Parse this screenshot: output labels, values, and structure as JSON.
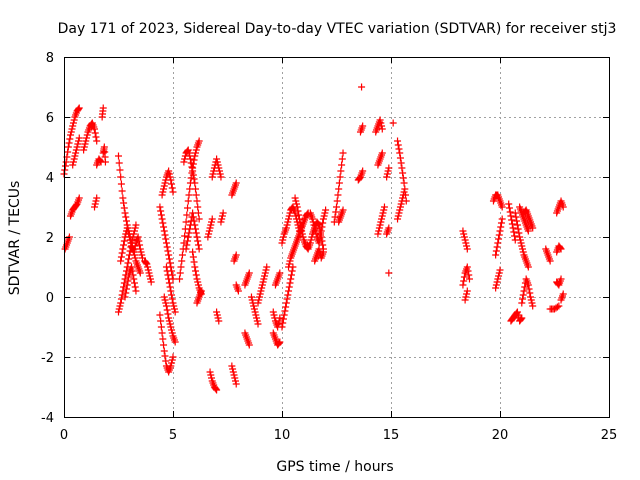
{
  "chart_data": {
    "type": "scatter",
    "title": "Day 171 of 2023, Sidereal Day-to-day VTEC variation (SDTVAR) for receiver stj3",
    "xlabel": "GPS time / hours",
    "ylabel": "SDTVAR / TECUs",
    "xlim": [
      0,
      25
    ],
    "ylim": [
      -4,
      8
    ],
    "xticks": [
      0,
      5,
      10,
      15,
      20,
      25
    ],
    "yticks": [
      -4,
      -2,
      0,
      2,
      4,
      6,
      8
    ],
    "xtick_labels": [
      "0",
      "5",
      "10",
      "15",
      "20",
      "25"
    ],
    "ytick_labels": [
      "-4",
      "-2",
      "0",
      "2",
      "4",
      "6",
      "8"
    ],
    "grid": true,
    "marker": "+",
    "color": "#ff0000",
    "tracks": [
      {
        "x": [
          0.0,
          0.1,
          0.2,
          0.3,
          0.4,
          0.5,
          0.6,
          0.7
        ],
        "y": [
          4.1,
          4.5,
          5.0,
          5.4,
          5.7,
          6.0,
          6.2,
          6.3
        ]
      },
      {
        "x": [
          0.05,
          0.15,
          0.25
        ],
        "y": [
          1.6,
          1.8,
          2.0
        ]
      },
      {
        "x": [
          0.3,
          0.4,
          0.5,
          0.6,
          0.7
        ],
        "y": [
          2.7,
          2.9,
          3.0,
          3.1,
          3.3
        ]
      },
      {
        "x": [
          0.4,
          0.5,
          0.6,
          0.7
        ],
        "y": [
          4.4,
          4.7,
          5.0,
          5.3
        ]
      },
      {
        "x": [
          0.9,
          1.0,
          1.1,
          1.2,
          1.3,
          1.4,
          1.5
        ],
        "y": [
          4.9,
          5.2,
          5.5,
          5.7,
          5.8,
          5.6,
          5.2
        ]
      },
      {
        "x": [
          1.4,
          1.5
        ],
        "y": [
          3.0,
          3.3
        ]
      },
      {
        "x": [
          1.5,
          1.6,
          1.7
        ],
        "y": [
          4.4,
          4.6,
          4.5
        ]
      },
      {
        "x": [
          1.75,
          1.8
        ],
        "y": [
          6.0,
          6.3
        ]
      },
      {
        "x": [
          1.8,
          1.85,
          1.9
        ],
        "y": [
          4.8,
          5.0,
          4.5
        ]
      },
      {
        "x": [
          2.5,
          2.6,
          2.7,
          2.8,
          2.9,
          3.0,
          3.1,
          3.2,
          3.3,
          3.4,
          3.5
        ],
        "y": [
          4.7,
          4.0,
          3.3,
          2.8,
          2.4,
          2.1,
          1.8,
          1.5,
          1.2,
          1.0,
          0.8
        ]
      },
      {
        "x": [
          2.5,
          2.6,
          2.7,
          2.8,
          2.9,
          3.0,
          3.1,
          3.2,
          3.3
        ],
        "y": [
          -0.5,
          -0.2,
          0.2,
          0.6,
          1.0,
          1.4,
          1.8,
          2.1,
          2.4
        ]
      },
      {
        "x": [
          2.6,
          2.7,
          2.8,
          2.9,
          3.0,
          3.1,
          3.2,
          3.3,
          3.4,
          3.5,
          3.6
        ],
        "y": [
          1.2,
          1.6,
          2.0,
          2.3,
          2.0,
          1.7,
          1.5,
          1.8,
          2.0,
          1.6,
          1.3
        ]
      },
      {
        "x": [
          2.8,
          2.9,
          3.0,
          3.1,
          3.2,
          3.3
        ],
        "y": [
          0.0,
          0.4,
          0.8,
          1.0,
          0.6,
          0.2
        ]
      },
      {
        "x": [
          3.7,
          3.8,
          3.9,
          4.0
        ],
        "y": [
          1.2,
          1.1,
          0.8,
          0.5
        ]
      },
      {
        "x": [
          4.4,
          4.5,
          4.6,
          4.7,
          4.8,
          4.9,
          5.0
        ],
        "y": [
          3.0,
          2.6,
          2.2,
          1.8,
          1.4,
          1.0,
          0.6
        ]
      },
      {
        "x": [
          4.4,
          4.5,
          4.6,
          4.7,
          4.8,
          4.9,
          5.0
        ],
        "y": [
          -0.6,
          -1.2,
          -1.8,
          -2.3,
          -2.5,
          -2.3,
          -2.0
        ]
      },
      {
        "x": [
          4.5,
          4.6,
          4.7,
          4.8,
          4.9,
          5.0
        ],
        "y": [
          3.4,
          3.7,
          4.0,
          4.2,
          3.9,
          3.5
        ]
      },
      {
        "x": [
          4.6,
          4.7,
          4.8,
          4.9,
          5.0,
          5.1
        ],
        "y": [
          0.0,
          -0.3,
          -0.7,
          -1.0,
          -1.3,
          -1.5
        ]
      },
      {
        "x": [
          4.7,
          4.8,
          4.9,
          5.0,
          5.1
        ],
        "y": [
          1.0,
          0.6,
          0.2,
          -0.2,
          -0.5
        ]
      },
      {
        "x": [
          5.3,
          5.4,
          5.5,
          5.6,
          5.7,
          5.8,
          5.9,
          6.0,
          6.1,
          6.2
        ],
        "y": [
          0.6,
          1.2,
          1.8,
          2.5,
          3.2,
          3.8,
          4.3,
          4.7,
          5.0,
          5.2
        ]
      },
      {
        "x": [
          5.5,
          5.6,
          5.7,
          5.8,
          5.9,
          6.0,
          6.1,
          6.2
        ],
        "y": [
          4.5,
          4.8,
          4.9,
          4.6,
          4.2,
          3.8,
          3.2,
          2.6
        ]
      },
      {
        "x": [
          5.6,
          5.7,
          5.8,
          5.9,
          6.0,
          6.1,
          6.2
        ],
        "y": [
          1.6,
          2.0,
          2.4,
          2.8,
          2.4,
          2.0,
          1.6
        ]
      },
      {
        "x": [
          5.9,
          6.0,
          6.1,
          6.2,
          6.3
        ],
        "y": [
          1.5,
          1.0,
          0.6,
          0.3,
          0.1
        ]
      },
      {
        "x": [
          6.1,
          6.2,
          6.3
        ],
        "y": [
          -0.2,
          0.0,
          0.2
        ]
      },
      {
        "x": [
          6.6,
          6.7,
          6.8
        ],
        "y": [
          2.0,
          2.3,
          2.6
        ]
      },
      {
        "x": [
          6.7,
          6.8,
          6.9,
          7.0
        ],
        "y": [
          -2.5,
          -2.8,
          -3.0,
          -3.1
        ]
      },
      {
        "x": [
          6.8,
          6.9,
          7.0,
          7.1,
          7.2
        ],
        "y": [
          4.0,
          4.3,
          4.6,
          4.3,
          4.0
        ]
      },
      {
        "x": [
          7.0,
          7.1
        ],
        "y": [
          -0.5,
          -0.8
        ]
      },
      {
        "x": [
          7.2,
          7.3
        ],
        "y": [
          2.5,
          2.8
        ]
      },
      {
        "x": [
          7.7,
          7.8,
          7.9
        ],
        "y": [
          3.4,
          3.6,
          3.8
        ]
      },
      {
        "x": [
          7.7,
          7.8,
          7.9
        ],
        "y": [
          -2.3,
          -2.6,
          -2.9
        ]
      },
      {
        "x": [
          7.8,
          7.9
        ],
        "y": [
          1.2,
          1.4
        ]
      },
      {
        "x": [
          7.9,
          8.0
        ],
        "y": [
          0.4,
          0.2
        ]
      },
      {
        "x": [
          8.3,
          8.4,
          8.5
        ],
        "y": [
          -1.2,
          -1.4,
          -1.6
        ]
      },
      {
        "x": [
          8.3,
          8.4,
          8.5
        ],
        "y": [
          0.4,
          0.6,
          0.8
        ]
      },
      {
        "x": [
          8.6,
          8.7,
          8.8,
          8.9
        ],
        "y": [
          0.0,
          -0.3,
          -0.6,
          -0.9
        ]
      },
      {
        "x": [
          8.9,
          9.0,
          9.1,
          9.2,
          9.3
        ],
        "y": [
          -0.2,
          0.1,
          0.4,
          0.7,
          1.0
        ]
      },
      {
        "x": [
          9.6,
          9.7,
          9.8,
          9.9
        ],
        "y": [
          -1.2,
          -1.4,
          -1.6,
          -1.5
        ]
      },
      {
        "x": [
          9.6,
          9.7,
          9.8,
          9.9
        ],
        "y": [
          -0.5,
          -0.8,
          -1.0,
          -0.7
        ]
      },
      {
        "x": [
          9.7,
          9.8,
          9.9
        ],
        "y": [
          0.4,
          0.6,
          0.8
        ]
      },
      {
        "x": [
          10.0,
          10.1,
          10.2,
          10.3,
          10.4,
          10.5
        ],
        "y": [
          -1.0,
          -0.6,
          -0.2,
          0.2,
          0.6,
          1.0
        ]
      },
      {
        "x": [
          10.0,
          10.1,
          10.2,
          10.3,
          10.4,
          10.5,
          10.6,
          10.7,
          10.8
        ],
        "y": [
          1.8,
          2.1,
          2.3,
          2.6,
          2.9,
          3.0,
          2.8,
          2.5,
          2.2
        ]
      },
      {
        "x": [
          10.3,
          10.4,
          10.5,
          10.6,
          10.7,
          10.8,
          10.9,
          11.0,
          11.1,
          11.2
        ],
        "y": [
          1.0,
          1.3,
          1.5,
          1.7,
          1.9,
          2.1,
          2.3,
          2.5,
          2.7,
          2.8
        ]
      },
      {
        "x": [
          10.6,
          10.7,
          10.8,
          10.9,
          11.0,
          11.1,
          11.2,
          11.3,
          11.4,
          11.5,
          11.6,
          11.7,
          11.8,
          11.9
        ],
        "y": [
          3.3,
          3.0,
          2.6,
          2.2,
          1.9,
          1.7,
          1.6,
          1.8,
          2.1,
          2.3,
          2.5,
          2.4,
          2.0,
          1.6
        ]
      },
      {
        "x": [
          11.3,
          11.4,
          11.5,
          11.6,
          11.7,
          11.8,
          11.9,
          12.0
        ],
        "y": [
          2.8,
          2.6,
          2.3,
          2.0,
          1.8,
          2.2,
          2.6,
          2.9
        ]
      },
      {
        "x": [
          11.5,
          11.6,
          11.7,
          11.8,
          11.9
        ],
        "y": [
          1.2,
          1.4,
          1.6,
          1.3,
          1.5
        ]
      },
      {
        "x": [
          12.4,
          12.5,
          12.6,
          12.7,
          12.8
        ],
        "y": [
          2.5,
          3.0,
          3.6,
          4.2,
          4.8
        ]
      },
      {
        "x": [
          12.6,
          12.7,
          12.8
        ],
        "y": [
          2.5,
          2.7,
          2.9
        ]
      },
      {
        "x": [
          13.5,
          13.6,
          13.7
        ],
        "y": [
          3.9,
          4.0,
          4.2
        ]
      },
      {
        "x": [
          13.6,
          13.7
        ],
        "y": [
          5.5,
          5.7
        ]
      },
      {
        "x": [
          13.65
        ],
        "y": [
          7.0
        ]
      },
      {
        "x": [
          14.3,
          14.4,
          14.5,
          14.6
        ],
        "y": [
          5.5,
          5.7,
          5.9,
          5.6
        ]
      },
      {
        "x": [
          14.4,
          14.5,
          14.6
        ],
        "y": [
          4.4,
          4.6,
          4.8
        ]
      },
      {
        "x": [
          14.4,
          14.5,
          14.6,
          14.7
        ],
        "y": [
          2.1,
          2.4,
          2.7,
          3.0
        ]
      },
      {
        "x": [
          14.8,
          14.9
        ],
        "y": [
          4.0,
          4.3
        ]
      },
      {
        "x": [
          14.8,
          14.9
        ],
        "y": [
          2.1,
          2.3
        ]
      },
      {
        "x": [
          14.9
        ],
        "y": [
          0.8
        ]
      },
      {
        "x": [
          15.1
        ],
        "y": [
          5.8
        ]
      },
      {
        "x": [
          15.3,
          15.4,
          15.5,
          15.6,
          15.7
        ],
        "y": [
          5.2,
          4.8,
          4.3,
          3.8,
          3.2
        ]
      },
      {
        "x": [
          15.3,
          15.4,
          15.5,
          15.6
        ],
        "y": [
          2.6,
          2.9,
          3.2,
          3.5
        ]
      },
      {
        "x": [
          18.3,
          18.4,
          18.5
        ],
        "y": [
          2.2,
          1.9,
          1.6
        ]
      },
      {
        "x": [
          18.3,
          18.4,
          18.5,
          18.6
        ],
        "y": [
          0.4,
          0.8,
          1.0,
          0.6
        ]
      },
      {
        "x": [
          18.4,
          18.5
        ],
        "y": [
          -0.1,
          0.2
        ]
      },
      {
        "x": [
          19.7,
          19.8,
          19.9,
          20.0,
          20.1
        ],
        "y": [
          3.2,
          3.4,
          3.4,
          3.2,
          3.0
        ]
      },
      {
        "x": [
          19.8,
          19.9,
          20.0,
          20.1
        ],
        "y": [
          1.4,
          1.8,
          2.2,
          2.6
        ]
      },
      {
        "x": [
          19.8,
          19.9,
          20.0
        ],
        "y": [
          0.3,
          0.6,
          0.9
        ]
      },
      {
        "x": [
          20.4,
          20.5,
          20.6,
          20.7
        ],
        "y": [
          3.1,
          2.7,
          2.3,
          1.9
        ]
      },
      {
        "x": [
          20.5,
          20.6,
          20.7,
          20.8,
          20.9,
          21.0
        ],
        "y": [
          -0.8,
          -0.7,
          -0.6,
          -0.5,
          -0.8,
          -0.7
        ]
      },
      {
        "x": [
          20.7,
          20.8,
          20.9,
          21.0,
          21.1,
          21.2,
          21.3
        ],
        "y": [
          2.8,
          2.4,
          2.0,
          1.7,
          1.4,
          1.2,
          1.0
        ]
      },
      {
        "x": [
          20.9,
          21.0,
          21.1,
          21.2,
          21.3
        ],
        "y": [
          3.0,
          2.8,
          2.6,
          2.4,
          2.2
        ]
      },
      {
        "x": [
          21.0,
          21.1,
          21.2,
          21.3,
          21.4,
          21.5
        ],
        "y": [
          -0.2,
          0.2,
          0.6,
          0.4,
          0.0,
          -0.3
        ]
      },
      {
        "x": [
          21.1,
          21.2,
          21.3,
          21.4,
          21.5
        ],
        "y": [
          2.8,
          2.9,
          2.7,
          2.5,
          2.3
        ]
      },
      {
        "x": [
          22.1,
          22.2,
          22.3
        ],
        "y": [
          1.6,
          1.4,
          1.2
        ]
      },
      {
        "x": [
          22.3,
          22.5,
          22.7
        ],
        "y": [
          -0.4,
          -0.4,
          -0.3
        ]
      },
      {
        "x": [
          22.6,
          22.7,
          22.8,
          22.9
        ],
        "y": [
          2.8,
          3.0,
          3.2,
          3.0
        ]
      },
      {
        "x": [
          22.6,
          22.7,
          22.8
        ],
        "y": [
          1.5,
          1.7,
          1.6
        ]
      },
      {
        "x": [
          22.6,
          22.7,
          22.8
        ],
        "y": [
          0.5,
          0.4,
          0.6
        ]
      },
      {
        "x": [
          22.8,
          22.9
        ],
        "y": [
          -0.1,
          0.1
        ]
      }
    ]
  }
}
